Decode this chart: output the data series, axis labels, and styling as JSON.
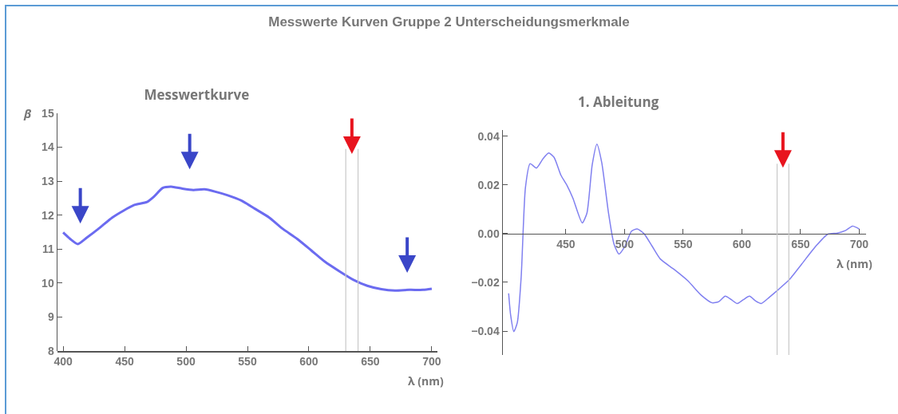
{
  "chart_data": [
    {
      "type": "line",
      "title": "Messwertkurve",
      "annotations": [
        "Messwerte Kurven Gruppe 2 Unterscheidungsmerkmale"
      ],
      "xlabel": "λ (nm)",
      "ylabel": "β",
      "x": [
        400,
        405.7,
        412,
        419.4,
        428.5,
        440,
        449,
        458,
        468.4,
        474,
        481,
        487.8,
        497,
        506,
        515,
        524,
        533.5,
        545,
        556,
        567.7,
        579,
        590.5,
        602,
        613,
        624.7,
        636,
        647.5,
        659,
        670,
        681.8,
        693,
        700
      ],
      "series": [
        {
          "color": "#6b6bf0",
          "values": [
            11.49,
            11.3,
            11.15,
            11.34,
            11.59,
            11.93,
            12.13,
            12.3,
            12.39,
            12.55,
            12.8,
            12.84,
            12.78,
            12.74,
            12.76,
            12.69,
            12.59,
            12.43,
            12.19,
            11.93,
            11.59,
            11.3,
            10.96,
            10.63,
            10.35,
            10.1,
            9.92,
            9.82,
            9.78,
            9.8,
            9.8,
            9.83
          ]
        }
      ],
      "xlim": [
        395.4,
        704.6
      ],
      "ylim": [
        8,
        15
      ],
      "xticks": [
        400,
        450,
        500,
        550,
        600,
        650,
        700
      ],
      "yticks": [
        8,
        9,
        10,
        11,
        12,
        13,
        14,
        15
      ],
      "ref_lines": [
        {
          "axis": "x",
          "value": 630,
          "color": "#c8c8c8"
        },
        {
          "axis": "x",
          "value": 640,
          "color": "#c8c8c8"
        }
      ],
      "grid": false,
      "marker": "none",
      "line_style": "solid"
    },
    {
      "type": "line",
      "title": "1. Ableitung",
      "xlabel": "λ (nm)",
      "x": [
        401.3,
        403,
        405.7,
        408.7,
        412,
        415.6,
        419.6,
        425,
        430.7,
        435.4,
        440,
        445.8,
        451,
        456,
        464,
        468,
        472.5,
        476.5,
        480.6,
        486.4,
        491,
        495.3,
        500.4,
        506,
        510.8,
        516.6,
        523.6,
        530.5,
        542,
        553.8,
        565.4,
        574.7,
        580.4,
        585.8,
        591,
        596,
        601.3,
        606.5,
        611.8,
        616.4,
        623.4,
        631,
        640.6,
        651,
        662.9,
        673.3,
        681.4,
        688.4,
        694.2,
        700
      ],
      "series": [
        {
          "color": "#8080f0",
          "values": [
            -0.0245,
            -0.0334,
            -0.0402,
            -0.0365,
            -0.0177,
            0.0188,
            0.0287,
            0.0269,
            0.0308,
            0.0331,
            0.0313,
            0.024,
            0.0198,
            0.0146,
            0.0044,
            0.0084,
            0.0282,
            0.0367,
            0.0292,
            0.0084,
            -0.0042,
            -0.0084,
            -0.0052,
            0.001,
            0.0019,
            0,
            -0.0052,
            -0.0104,
            -0.0146,
            -0.0193,
            -0.0253,
            -0.0284,
            -0.0279,
            -0.0257,
            -0.0271,
            -0.0287,
            -0.0271,
            -0.0257,
            -0.0277,
            -0.0287,
            -0.0261,
            -0.023,
            -0.0188,
            -0.0125,
            -0.0052,
            -0.0002,
            0.0002,
            0.0013,
            0.0031,
            0.0019
          ]
        }
      ],
      "xlim": [
        396.4,
        705.8
      ],
      "ylim": [
        -0.0498,
        0.0425
      ],
      "xticks": [
        450,
        500,
        550,
        600,
        650,
        700
      ],
      "yticks": [
        {
          "value": -0.04,
          "label": "−0.04"
        },
        {
          "value": -0.02,
          "label": "−0.02"
        },
        {
          "value": 0,
          "label": "0.00"
        },
        {
          "value": 0.02,
          "label": "0.02"
        },
        {
          "value": 0.04,
          "label": "0.04"
        }
      ],
      "ref_lines": [
        {
          "axis": "x",
          "value": 630,
          "color": "#c8c8c8"
        },
        {
          "axis": "x",
          "value": 640,
          "color": "#c8c8c8"
        }
      ],
      "grid": false,
      "marker": "none",
      "line_style": "solid"
    }
  ]
}
